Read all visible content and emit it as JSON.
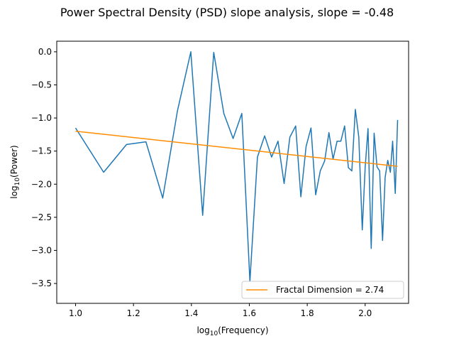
{
  "chart_data": {
    "type": "line",
    "title": "Power Spectral Density (PSD) slope analysis, slope = -0.48",
    "xlabel": {
      "prefix": "log",
      "sub": "10",
      "suffix": "(Frequency)"
    },
    "ylabel": {
      "prefix": "log",
      "sub": "10",
      "suffix": "(Power)"
    },
    "xlim": [
      0.935,
      2.15
    ],
    "ylim": [
      -3.8,
      0.16
    ],
    "x_ticks": [
      {
        "value": 1.0,
        "label": "1.0"
      },
      {
        "value": 1.2,
        "label": "1.2"
      },
      {
        "value": 1.4,
        "label": "1.4"
      },
      {
        "value": 1.6,
        "label": "1.6"
      },
      {
        "value": 1.8,
        "label": "1.8"
      },
      {
        "value": 2.0,
        "label": "2.0"
      }
    ],
    "y_ticks": [
      {
        "value": 0.0,
        "label": "0.0"
      },
      {
        "value": -0.5,
        "label": "−0.5"
      },
      {
        "value": -1.0,
        "label": "−1.0"
      },
      {
        "value": -1.5,
        "label": "−1.5"
      },
      {
        "value": -2.0,
        "label": "−2.0"
      },
      {
        "value": -2.5,
        "label": "−2.5"
      },
      {
        "value": -3.0,
        "label": "−3.0"
      },
      {
        "value": -3.5,
        "label": "−3.5"
      }
    ],
    "grid": false,
    "legend_position": "lower-right",
    "series": [
      {
        "color": "#1f77b4",
        "x": [
          1.0,
          1.097,
          1.176,
          1.243,
          1.301,
          1.352,
          1.398,
          1.439,
          1.477,
          1.512,
          1.544,
          1.574,
          1.602,
          1.628,
          1.653,
          1.677,
          1.699,
          1.72,
          1.74,
          1.76,
          1.778,
          1.796,
          1.813,
          1.829,
          1.845,
          1.86,
          1.875,
          1.889,
          1.903,
          1.916,
          1.929,
          1.942,
          1.954,
          1.966,
          1.978,
          1.99,
          2.0,
          2.01,
          2.021,
          2.031,
          2.041,
          2.05,
          2.06,
          2.069,
          2.078,
          2.087,
          2.095,
          2.104,
          2.112
        ],
        "y": [
          -1.15,
          -1.82,
          -1.4,
          -1.36,
          -2.21,
          -0.89,
          0.0,
          -2.47,
          -0.01,
          -0.93,
          -1.31,
          -0.93,
          -3.47,
          -1.59,
          -1.27,
          -1.59,
          -1.35,
          -1.99,
          -1.29,
          -1.12,
          -2.19,
          -1.43,
          -1.15,
          -2.16,
          -1.8,
          -1.65,
          -1.22,
          -1.62,
          -1.35,
          -1.35,
          -1.12,
          -1.75,
          -1.8,
          -0.87,
          -1.29,
          -2.69,
          -1.74,
          -1.16,
          -2.97,
          -1.23,
          -1.74,
          -1.8,
          -2.85,
          -1.9,
          -1.64,
          -1.82,
          -1.35,
          -2.14,
          -1.03
        ]
      },
      {
        "name": "Fractal Dimension = 2.74",
        "color": "#ff8c00",
        "x": [
          1.0,
          2.112
        ],
        "y": [
          -1.2,
          -1.73
        ]
      }
    ]
  }
}
